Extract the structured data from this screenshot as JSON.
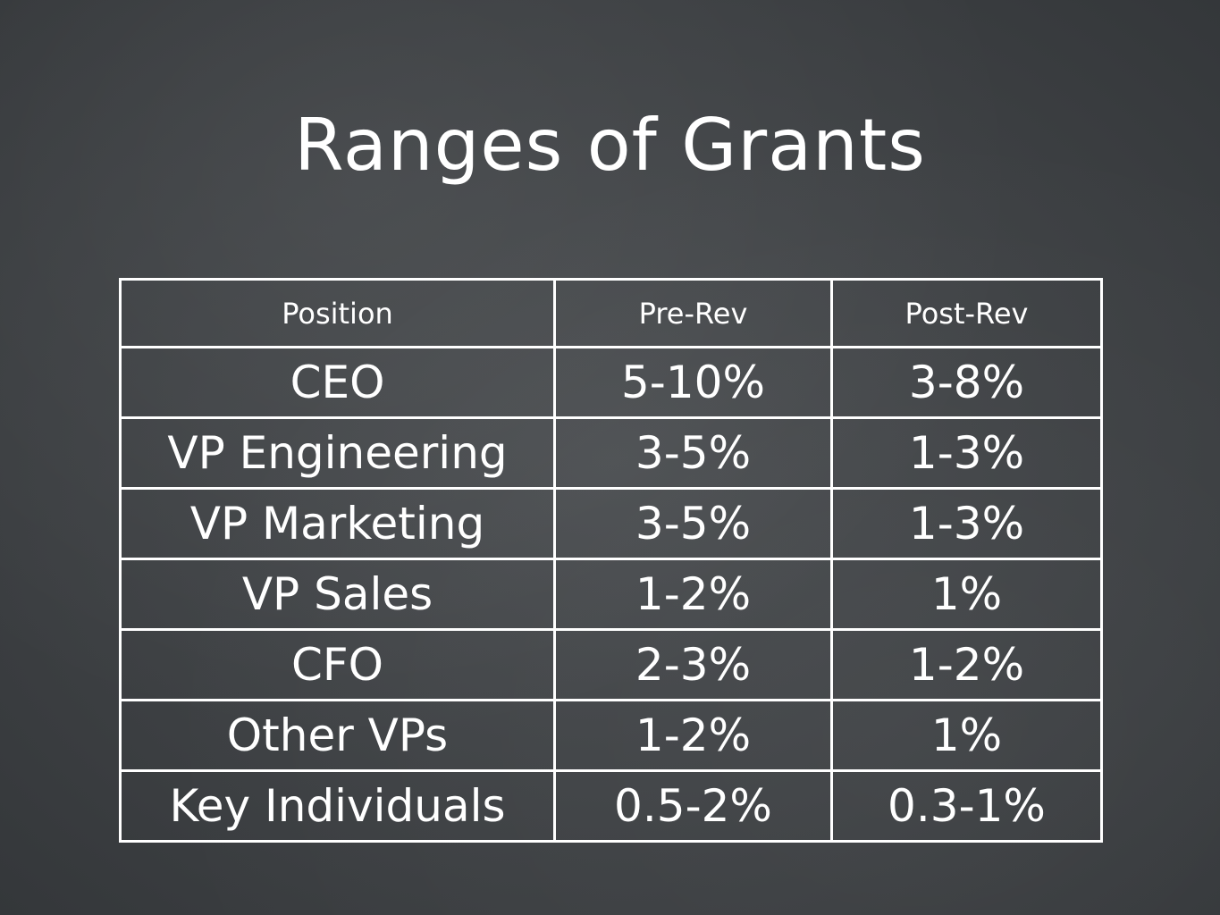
{
  "slide": {
    "title": "Ranges of Grants"
  },
  "table": {
    "headers": [
      "Position",
      "Pre-Rev",
      "Post-Rev"
    ],
    "rows": [
      {
        "position": "CEO",
        "pre_rev": "5-10%",
        "post_rev": "3-8%"
      },
      {
        "position": "VP Engineering",
        "pre_rev": "3-5%",
        "post_rev": "1-3%"
      },
      {
        "position": "VP Marketing",
        "pre_rev": "3-5%",
        "post_rev": "1-3%"
      },
      {
        "position": "VP Sales",
        "pre_rev": "1-2%",
        "post_rev": "1%"
      },
      {
        "position": "CFO",
        "pre_rev": "2-3%",
        "post_rev": "1-2%"
      },
      {
        "position": "Other VPs",
        "pre_rev": "1-2%",
        "post_rev": "1%"
      },
      {
        "position": "Key Individuals",
        "pre_rev": "0.5-2%",
        "post_rev": "0.3-1%"
      }
    ]
  }
}
